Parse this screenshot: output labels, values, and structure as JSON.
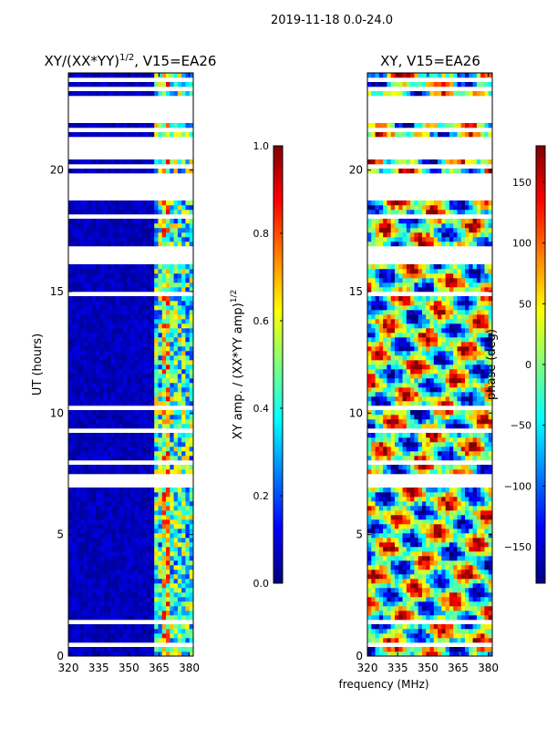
{
  "suptitle": "2019-11-18 0.0-24.0",
  "shared_xlabel": "frequency (MHz)",
  "colormap": [
    "#00007f",
    "#0000ff",
    "#007fff",
    "#00ffff",
    "#7fff7f",
    "#ffff00",
    "#ff7f00",
    "#ff0000",
    "#7f0000"
  ],
  "chart_data": [
    {
      "type": "heatmap",
      "title_base": "XY/(XX*YY)",
      "title_sup": "1/2",
      "title_suffix": ", V15=EA26",
      "xlabel": "",
      "ylabel": "UT (hours)",
      "xlim": [
        320,
        382
      ],
      "ylim": [
        0,
        24
      ],
      "xticks": [
        "320",
        "335",
        "350",
        "365",
        "380"
      ],
      "xtick_values": [
        320,
        335,
        350,
        365,
        380
      ],
      "yticks": [
        "0",
        "5",
        "10",
        "15",
        "20"
      ],
      "ytick_values": [
        0,
        5,
        10,
        15,
        20
      ],
      "pattern": "amplitude",
      "vlim": [
        0.0,
        1.0
      ],
      "flagged_ut_ranges": [
        [
          0.45,
          0.55
        ],
        [
          1.35,
          1.45
        ],
        [
          4.3,
          4.4
        ],
        [
          5.0,
          5.1
        ],
        [
          6.55,
          6.65
        ],
        [
          6.9,
          7.5
        ],
        [
          7.9,
          8.0
        ],
        [
          9.1,
          9.3
        ],
        [
          10.2,
          10.3
        ],
        [
          12.5,
          12.6
        ],
        [
          14.85,
          14.95
        ],
        [
          15.1,
          15.2
        ],
        [
          16.2,
          16.9
        ],
        [
          18.0,
          18.1
        ],
        [
          18.8,
          19.6
        ],
        [
          19.75,
          19.85
        ],
        [
          20.1,
          20.2
        ],
        [
          20.5,
          21.3
        ],
        [
          21.65,
          21.75
        ],
        [
          21.9,
          23.0
        ],
        [
          23.3,
          23.4
        ],
        [
          23.65,
          23.75
        ]
      ],
      "colorbar": {
        "label_base": "XY amp. / (XX*YY amp)",
        "label_sup": "1/2",
        "ticks": [
          "0.0",
          "0.2",
          "0.4",
          "0.6",
          "0.8",
          "1.0"
        ],
        "tick_values": [
          0.0,
          0.2,
          0.4,
          0.6,
          0.8,
          1.0
        ]
      }
    },
    {
      "type": "heatmap",
      "title_base": "XY, V15=EA26",
      "title_sup": "",
      "title_suffix": "",
      "xlabel": "frequency (MHz)",
      "ylabel": "",
      "xlim": [
        320,
        382
      ],
      "ylim": [
        0,
        24
      ],
      "xticks": [
        "320",
        "335",
        "350",
        "365",
        "380"
      ],
      "xtick_values": [
        320,
        335,
        350,
        365,
        380
      ],
      "yticks": [
        "0",
        "5",
        "10",
        "15",
        "20"
      ],
      "ytick_values": [
        0,
        5,
        10,
        15,
        20
      ],
      "pattern": "phase",
      "vlim": [
        -180,
        180
      ],
      "flagged_ut_ranges": [
        [
          0.45,
          0.55
        ],
        [
          1.35,
          1.45
        ],
        [
          4.3,
          4.4
        ],
        [
          5.0,
          5.1
        ],
        [
          6.55,
          6.65
        ],
        [
          6.9,
          7.5
        ],
        [
          7.9,
          8.0
        ],
        [
          9.1,
          9.3
        ],
        [
          10.2,
          10.3
        ],
        [
          12.5,
          12.6
        ],
        [
          14.85,
          14.95
        ],
        [
          15.1,
          15.2
        ],
        [
          16.2,
          16.9
        ],
        [
          18.0,
          18.1
        ],
        [
          18.8,
          19.6
        ],
        [
          19.75,
          19.85
        ],
        [
          20.1,
          20.2
        ],
        [
          20.5,
          21.3
        ],
        [
          21.65,
          21.75
        ],
        [
          21.9,
          23.0
        ],
        [
          23.3,
          23.4
        ],
        [
          23.65,
          23.75
        ]
      ],
      "colorbar": {
        "label_base": "phase (deg)",
        "label_sup": "",
        "ticks": [
          "−150",
          "−100",
          "−50",
          "0",
          "50",
          "100",
          "150"
        ],
        "tick_values": [
          -150,
          -100,
          -50,
          0,
          50,
          100,
          150
        ]
      }
    }
  ]
}
